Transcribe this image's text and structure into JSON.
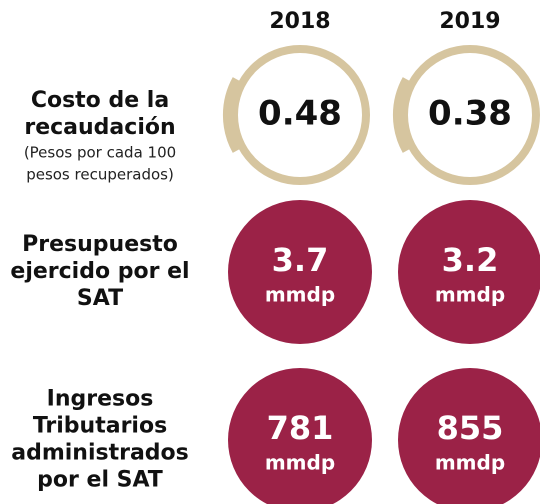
{
  "header": {
    "years": [
      "2018",
      "2019"
    ]
  },
  "rows": [
    {
      "label": [
        "Costo de la",
        "recaudación"
      ],
      "sublabel": [
        "(Pesos por cada 100",
        "pesos recuperados)"
      ],
      "style": "ring",
      "values": [
        {
          "value": "0.48"
        },
        {
          "value": "0.38"
        }
      ]
    },
    {
      "label": [
        "Presupuesto",
        "ejercido por el",
        "SAT"
      ],
      "style": "filled",
      "values": [
        {
          "value": "3.7",
          "unit": "mmdp"
        },
        {
          "value": "3.2",
          "unit": "mmdp"
        }
      ]
    },
    {
      "label": [
        "Ingresos",
        "Tributarios",
        "administrados",
        "por el SAT"
      ],
      "style": "filled",
      "values": [
        {
          "value": "781",
          "unit": "mmdp"
        },
        {
          "value": "855",
          "unit": "mmdp"
        }
      ]
    }
  ]
}
